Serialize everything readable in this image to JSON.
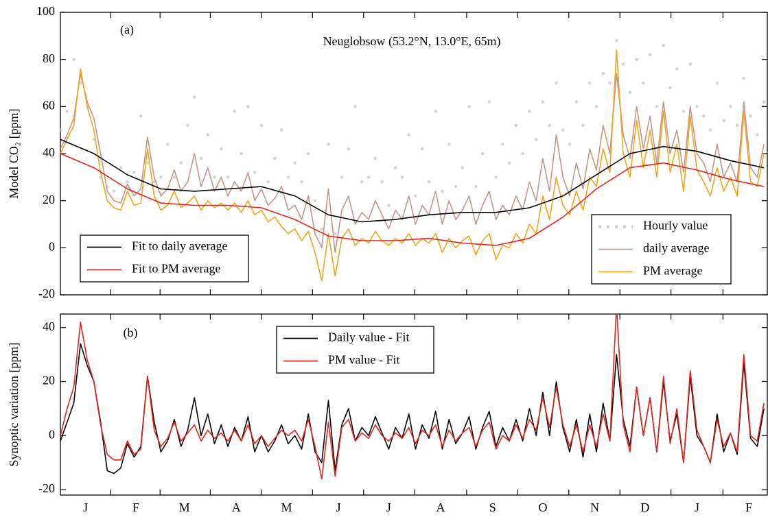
{
  "chart_data": [
    {
      "type": "line",
      "title": "Neuglobsow (53.2°N, 13.0°E, 65m)",
      "annotation": "(a)",
      "ylabel": "Model CO₂ [ppm]",
      "xlim": [
        0,
        422
      ],
      "ylim": [
        -20,
        100
      ],
      "yticks": [
        -20,
        0,
        20,
        40,
        60,
        80,
        100
      ],
      "x": [
        0,
        4,
        8,
        12,
        16,
        20,
        24,
        28,
        32,
        36,
        40,
        44,
        48,
        52,
        56,
        60,
        64,
        68,
        72,
        76,
        80,
        84,
        88,
        92,
        96,
        100,
        104,
        108,
        112,
        116,
        120,
        124,
        128,
        132,
        136,
        140,
        144,
        148,
        152,
        156,
        160,
        164,
        168,
        172,
        176,
        180,
        184,
        188,
        192,
        196,
        200,
        204,
        208,
        212,
        216,
        220,
        224,
        228,
        232,
        236,
        240,
        244,
        248,
        252,
        256,
        260,
        264,
        268,
        272,
        276,
        280,
        284,
        288,
        292,
        296,
        300,
        304,
        308,
        312,
        316,
        320,
        324,
        328,
        332,
        336,
        340,
        344,
        348,
        352,
        356,
        360,
        364,
        368,
        372,
        376,
        380,
        384,
        388,
        392,
        396,
        400,
        404,
        408,
        412,
        416,
        420
      ],
      "series": [
        {
          "name": "Hourly value",
          "color": "#d4d4d4",
          "marker": "dot",
          "legend": "lower right",
          "values": [
            50,
            58,
            80,
            70,
            60,
            46,
            30,
            26,
            24,
            34,
            28,
            32,
            56,
            36,
            28,
            30,
            44,
            30,
            36,
            52,
            64,
            38,
            48,
            30,
            42,
            30,
            58,
            40,
            60,
            32,
            52,
            28,
            38,
            50,
            30,
            36,
            28,
            40,
            20,
            8,
            44,
            6,
            30,
            42,
            60,
            28,
            30,
            38,
            28,
            18,
            34,
            30,
            48,
            22,
            42,
            28,
            58,
            24,
            44,
            26,
            34,
            60,
            26,
            40,
            62,
            30,
            44,
            36,
            52,
            40,
            58,
            46,
            62,
            52,
            70,
            50,
            44,
            62,
            52,
            70,
            60,
            74,
            70,
            88,
            78,
            66,
            80,
            70,
            82,
            60,
            86,
            68,
            76,
            58,
            78,
            60,
            56,
            50,
            70,
            54,
            60,
            52,
            72,
            56,
            48,
            62
          ]
        },
        {
          "name": "daily average",
          "color": "#c4958f",
          "legend": "lower right",
          "values": [
            42,
            48,
            55,
            74,
            62,
            55,
            40,
            24,
            20,
            19,
            27,
            22,
            25,
            47,
            30,
            22,
            25,
            33,
            24,
            28,
            40,
            26,
            34,
            24,
            30,
            22,
            28,
            24,
            32,
            20,
            25,
            18,
            21,
            26,
            16,
            18,
            12,
            22,
            6,
            0,
            25,
            -2,
            16,
            22,
            10,
            15,
            12,
            20,
            14,
            8,
            16,
            12,
            22,
            10,
            18,
            14,
            24,
            10,
            20,
            12,
            16,
            22,
            10,
            18,
            24,
            12,
            18,
            14,
            22,
            16,
            28,
            20,
            38,
            24,
            48,
            30,
            22,
            36,
            25,
            42,
            33,
            52,
            40,
            74,
            48,
            38,
            60,
            42,
            56,
            36,
            62,
            40,
            50,
            32,
            60,
            40,
            36,
            28,
            44,
            30,
            36,
            28,
            62,
            34,
            30,
            44
          ]
        },
        {
          "name": "PM average",
          "color": "#f5a31a",
          "legend": "lower right",
          "values": [
            40,
            46,
            52,
            76,
            60,
            50,
            32,
            20,
            17,
            16,
            24,
            18,
            19,
            42,
            22,
            16,
            18,
            24,
            17,
            19,
            22,
            16,
            20,
            17,
            19,
            16,
            19,
            15,
            20,
            14,
            16,
            11,
            13,
            9,
            6,
            8,
            3,
            7,
            -2,
            -14,
            6,
            -12,
            4,
            8,
            1,
            4,
            2,
            7,
            3,
            1,
            4,
            2,
            6,
            1,
            4,
            2,
            6,
            -2,
            4,
            0,
            3,
            5,
            -3,
            3,
            6,
            -5,
            1,
            0,
            6,
            2,
            10,
            6,
            22,
            12,
            30,
            18,
            14,
            24,
            16,
            30,
            26,
            42,
            32,
            84,
            40,
            30,
            54,
            34,
            50,
            30,
            58,
            32,
            44,
            24,
            56,
            33,
            28,
            22,
            34,
            24,
            30,
            22,
            58,
            28,
            26,
            40
          ]
        },
        {
          "name": "Fit to daily average",
          "color": "#000000",
          "legend": "lower left",
          "x": [
            0,
            20,
            40,
            60,
            80,
            100,
            120,
            140,
            160,
            180,
            200,
            220,
            240,
            260,
            280,
            300,
            320,
            340,
            360,
            380,
            400,
            420
          ],
          "values": [
            46,
            40,
            31,
            25,
            24,
            25,
            26,
            22,
            14,
            11,
            12,
            14,
            15,
            15,
            17,
            22,
            31,
            40,
            43,
            41,
            37,
            34
          ]
        },
        {
          "name": "Fit to PM average",
          "color": "#e8231c",
          "legend": "lower left",
          "x": [
            0,
            20,
            40,
            60,
            80,
            100,
            120,
            140,
            160,
            180,
            200,
            220,
            240,
            260,
            280,
            300,
            320,
            340,
            360,
            380,
            400,
            420
          ],
          "values": [
            40,
            34,
            25,
            19,
            18,
            18,
            17,
            12,
            5,
            3,
            3,
            4,
            2,
            1,
            4,
            13,
            25,
            34,
            36,
            33,
            29,
            26
          ]
        }
      ]
    },
    {
      "type": "line",
      "annotation": "(b)",
      "ylabel": "Synoptic variation [ppm]",
      "xlim": [
        0,
        422
      ],
      "xticks": [
        {
          "value": 15,
          "label": "J"
        },
        {
          "value": 45,
          "label": "F"
        },
        {
          "value": 74,
          "label": "M"
        },
        {
          "value": 105,
          "label": "A"
        },
        {
          "value": 135,
          "label": "M"
        },
        {
          "value": 166,
          "label": "J"
        },
        {
          "value": 196,
          "label": "J"
        },
        {
          "value": 227,
          "label": "A"
        },
        {
          "value": 258,
          "label": "S"
        },
        {
          "value": 288,
          "label": "O"
        },
        {
          "value": 319,
          "label": "N"
        },
        {
          "value": 349,
          "label": "D"
        },
        {
          "value": 380,
          "label": "J"
        },
        {
          "value": 411,
          "label": "F"
        }
      ],
      "ylim": [
        -22,
        45
      ],
      "yticks": [
        -20,
        0,
        20,
        40
      ],
      "x": [
        0,
        4,
        8,
        12,
        16,
        20,
        24,
        28,
        32,
        36,
        40,
        44,
        48,
        52,
        56,
        60,
        64,
        68,
        72,
        76,
        80,
        84,
        88,
        92,
        96,
        100,
        104,
        108,
        112,
        116,
        120,
        124,
        128,
        132,
        136,
        140,
        144,
        148,
        152,
        156,
        160,
        164,
        168,
        172,
        176,
        180,
        184,
        188,
        192,
        196,
        200,
        204,
        208,
        212,
        216,
        220,
        224,
        228,
        232,
        236,
        240,
        244,
        248,
        252,
        256,
        260,
        264,
        268,
        272,
        276,
        280,
        284,
        288,
        292,
        296,
        300,
        304,
        308,
        312,
        316,
        320,
        324,
        328,
        332,
        336,
        340,
        344,
        348,
        352,
        356,
        360,
        364,
        368,
        372,
        376,
        380,
        384,
        388,
        392,
        396,
        400,
        404,
        408,
        412,
        416,
        420
      ],
      "series": [
        {
          "name": "Daily value - Fit",
          "color": "#000000",
          "legend": "upper center",
          "values": [
            -2,
            5,
            12,
            34,
            26,
            20,
            5,
            -13,
            -14,
            -12,
            -3,
            -8,
            -4,
            22,
            5,
            -6,
            -2,
            6,
            -4,
            2,
            14,
            0,
            8,
            -3,
            4,
            -4,
            3,
            -2,
            7,
            -6,
            0,
            -6,
            -2,
            4,
            -3,
            0,
            -5,
            8,
            -6,
            -10,
            13,
            -13,
            4,
            10,
            -2,
            3,
            0,
            7,
            1,
            -5,
            3,
            -1,
            8,
            -5,
            4,
            -1,
            9,
            -5,
            6,
            -3,
            1,
            7,
            -5,
            3,
            9,
            -4,
            3,
            -2,
            6,
            -2,
            10,
            0,
            16,
            0,
            20,
            3,
            -6,
            6,
            -8,
            8,
            -6,
            12,
            -2,
            30,
            6,
            -4,
            18,
            0,
            14,
            -6,
            20,
            -2,
            8,
            -10,
            22,
            0,
            -4,
            -10,
            8,
            -6,
            1,
            -7,
            27,
            -1,
            -4,
            10
          ]
        },
        {
          "name": "PM value - Fit",
          "color": "#e8231c",
          "legend": "upper center",
          "values": [
            0,
            10,
            18,
            42,
            28,
            20,
            4,
            -7,
            -9,
            -9,
            -2,
            -7,
            -5,
            22,
            2,
            -4,
            -1,
            5,
            -2,
            1,
            4,
            -2,
            2,
            -1,
            1,
            -2,
            2,
            -2,
            4,
            -3,
            0,
            -4,
            -1,
            2,
            0,
            2,
            -2,
            6,
            -4,
            -16,
            5,
            -15,
            3,
            6,
            -2,
            1,
            -1,
            4,
            0,
            -2,
            1,
            -1,
            3,
            -3,
            2,
            0,
            4,
            -4,
            2,
            -2,
            1,
            3,
            -4,
            2,
            5,
            -5,
            0,
            -2,
            4,
            -1,
            6,
            2,
            14,
            3,
            18,
            4,
            -4,
            4,
            -6,
            4,
            -4,
            8,
            -2,
            48,
            4,
            -6,
            18,
            0,
            14,
            -6,
            22,
            -3,
            10,
            -10,
            24,
            2,
            -4,
            -10,
            6,
            -4,
            1,
            -6,
            30,
            0,
            -2,
            12
          ]
        }
      ]
    }
  ]
}
